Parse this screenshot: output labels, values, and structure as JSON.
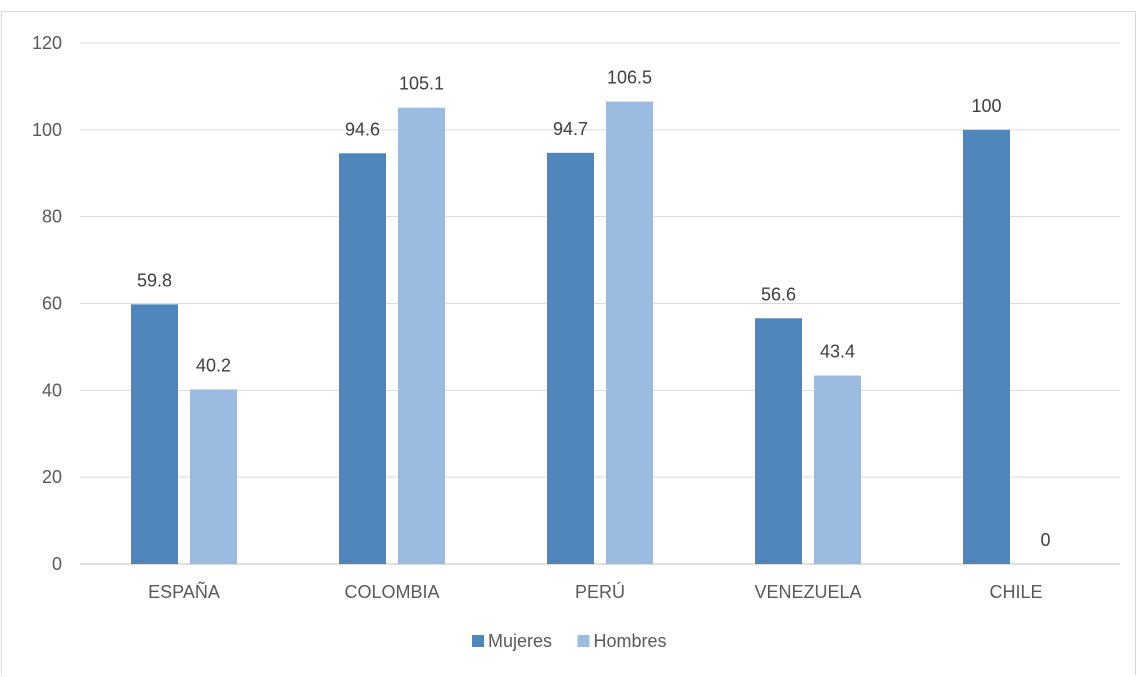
{
  "chart_data": {
    "type": "bar",
    "categories": [
      "ESPAÑA",
      "COLOMBIA",
      "PERÚ",
      "VENEZUELA",
      "CHILE"
    ],
    "series": [
      {
        "name": "Mujeres",
        "values": [
          59.8,
          94.6,
          94.7,
          56.6,
          100
        ],
        "color": "#4f86bc"
      },
      {
        "name": "Hombres",
        "values": [
          40.2,
          105.1,
          106.5,
          43.4,
          0
        ],
        "color": "#9bbbe0"
      }
    ],
    "y_ticks": [
      "0",
      "20",
      "40",
      "60",
      "80",
      "100",
      "120"
    ],
    "ylim": [
      0,
      120
    ],
    "grid": true,
    "legend_position": "bottom",
    "data_labels": [
      [
        "59.8",
        "94.6",
        "94.7",
        "56.6",
        "100"
      ],
      [
        "40.2",
        "105.1",
        "106.5",
        "43.4",
        "0"
      ]
    ],
    "title": "",
    "xlabel": "",
    "ylabel": ""
  }
}
